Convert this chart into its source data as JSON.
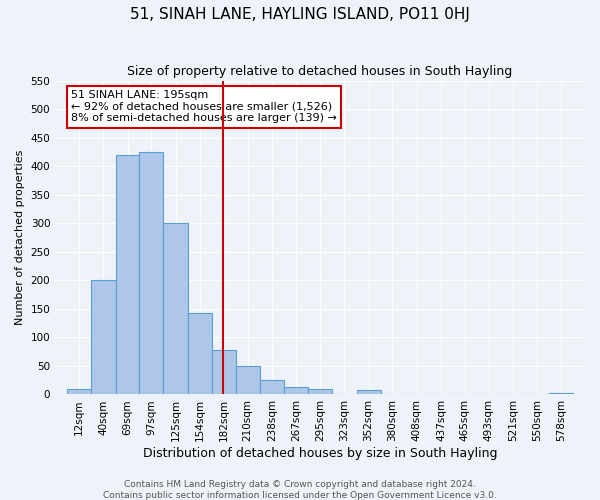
{
  "title": "51, SINAH LANE, HAYLING ISLAND, PO11 0HJ",
  "subtitle": "Size of property relative to detached houses in South Hayling",
  "xlabel": "Distribution of detached houses by size in South Hayling",
  "ylabel": "Number of detached properties",
  "bar_labels": [
    "12sqm",
    "40sqm",
    "69sqm",
    "97sqm",
    "125sqm",
    "154sqm",
    "182sqm",
    "210sqm",
    "238sqm",
    "267sqm",
    "295sqm",
    "323sqm",
    "352sqm",
    "380sqm",
    "408sqm",
    "437sqm",
    "465sqm",
    "493sqm",
    "521sqm",
    "550sqm",
    "578sqm"
  ],
  "bar_values": [
    10,
    200,
    420,
    425,
    300,
    143,
    78,
    50,
    25,
    13,
    10,
    0,
    8,
    0,
    0,
    0,
    0,
    0,
    0,
    0,
    3
  ],
  "bar_edges": [
    12,
    40,
    69,
    97,
    125,
    154,
    182,
    210,
    238,
    267,
    295,
    323,
    352,
    380,
    408,
    437,
    465,
    493,
    521,
    550,
    578,
    606
  ],
  "bar_color": "#aec6e8",
  "bar_edge_color": "#5a9fd4",
  "vline_x": 195,
  "vline_color": "#cc0000",
  "ylim": [
    0,
    550
  ],
  "yticks": [
    0,
    50,
    100,
    150,
    200,
    250,
    300,
    350,
    400,
    450,
    500,
    550
  ],
  "annotation_title": "51 SINAH LANE: 195sqm",
  "annotation_line1": "← 92% of detached houses are smaller (1,526)",
  "annotation_line2": "8% of semi-detached houses are larger (139) →",
  "annotation_box_color": "#ffffff",
  "annotation_box_edge": "#cc0000",
  "footer1": "Contains HM Land Registry data © Crown copyright and database right 2024.",
  "footer2": "Contains public sector information licensed under the Open Government Licence v3.0.",
  "background_color": "#eef2f9",
  "grid_color": "#ffffff",
  "title_fontsize": 11,
  "subtitle_fontsize": 9,
  "xlabel_fontsize": 9,
  "ylabel_fontsize": 8,
  "tick_fontsize": 7.5,
  "footer_fontsize": 6.5,
  "annot_fontsize": 8
}
